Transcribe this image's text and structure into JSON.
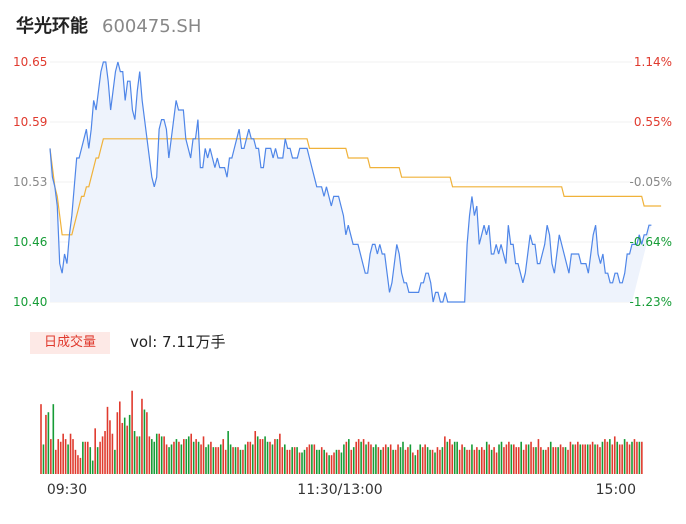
{
  "stock": {
    "name": "华光环能",
    "code": "600475.SH"
  },
  "volume_panel": {
    "tag": "日成交量",
    "label": "vol: 7.11万手"
  },
  "colors": {
    "price": "#4f86e8",
    "avg": "#f0b23a",
    "up": "#e03a2e",
    "down": "#169c36",
    "flat": "#888888",
    "area": "#eef3fc"
  },
  "chart_data": [
    {
      "type": "line",
      "title": "",
      "x_ticks": [
        "09:30",
        "11:30/13:00",
        "15:00"
      ],
      "y_left_ticks": [
        "10.65",
        "10.59",
        "10.53",
        "10.46",
        "10.40"
      ],
      "y_right_ticks": [
        "1.14%",
        "0.55%",
        "-0.05%",
        "-0.64%",
        "-1.23%"
      ],
      "ylim": [
        10.4,
        10.65
      ],
      "prev_close": 10.535,
      "x_count": 241,
      "series": [
        {
          "role": "price",
          "values": [
            10.56,
            10.53,
            10.52,
            10.5,
            10.44,
            10.43,
            10.45,
            10.44,
            10.47,
            10.49,
            10.52,
            10.55,
            10.55,
            10.56,
            10.57,
            10.58,
            10.56,
            10.58,
            10.61,
            10.6,
            10.62,
            10.64,
            10.65,
            10.65,
            10.63,
            10.6,
            10.62,
            10.64,
            10.65,
            10.64,
            10.64,
            10.61,
            10.63,
            10.63,
            10.6,
            10.59,
            10.62,
            10.64,
            10.61,
            10.59,
            10.57,
            10.55,
            10.53,
            10.52,
            10.53,
            10.58,
            10.59,
            10.59,
            10.58,
            10.55,
            10.57,
            10.59,
            10.61,
            10.6,
            10.6,
            10.6,
            10.57,
            10.56,
            10.55,
            10.57,
            10.57,
            10.59,
            10.54,
            10.54,
            10.56,
            10.55,
            10.56,
            10.55,
            10.54,
            10.55,
            10.54,
            10.54,
            10.54,
            10.53,
            10.55,
            10.55,
            10.56,
            10.57,
            10.58,
            10.56,
            10.56,
            10.57,
            10.58,
            10.57,
            10.57,
            10.56,
            10.56,
            10.54,
            10.54,
            10.56,
            10.56,
            10.56,
            10.55,
            10.56,
            10.55,
            10.55,
            10.55,
            10.57,
            10.56,
            10.56,
            10.55,
            10.55,
            10.55,
            10.56,
            10.56,
            10.56,
            10.56,
            10.55,
            10.54,
            10.53,
            10.52,
            10.52,
            10.52,
            10.51,
            10.52,
            10.51,
            10.5,
            10.51,
            10.51,
            10.51,
            10.5,
            10.49,
            10.47,
            10.48,
            10.47,
            10.46,
            10.46,
            10.46,
            10.45,
            10.44,
            10.43,
            10.43,
            10.45,
            10.46,
            10.46,
            10.45,
            10.46,
            10.45,
            10.45,
            10.43,
            10.41,
            10.42,
            10.44,
            10.46,
            10.45,
            10.43,
            10.42,
            10.42,
            10.41,
            10.41,
            10.41,
            10.41,
            10.41,
            10.42,
            10.42,
            10.43,
            10.43,
            10.42,
            10.4,
            10.41,
            10.41,
            10.4,
            10.4,
            10.41,
            10.4,
            10.4,
            10.4,
            10.4,
            10.4,
            10.4,
            10.4,
            10.4,
            10.46,
            10.49,
            10.51,
            10.49,
            10.5,
            10.46,
            10.47,
            10.48,
            10.47,
            10.48,
            10.45,
            10.45,
            10.46,
            10.45,
            10.46,
            10.45,
            10.44,
            10.48,
            10.46,
            10.46,
            10.44,
            10.44,
            10.43,
            10.42,
            10.43,
            10.45,
            10.47,
            10.46,
            10.46,
            10.44,
            10.44,
            10.45,
            10.46,
            10.48,
            10.47,
            10.44,
            10.43,
            10.45,
            10.47,
            10.46,
            10.45,
            10.44,
            10.43,
            10.45,
            10.45,
            10.45,
            10.45,
            10.44,
            10.44,
            10.44,
            10.43,
            10.45,
            10.47,
            10.48,
            10.45,
            10.44,
            10.45,
            10.43,
            10.43,
            10.42,
            10.42,
            10.43,
            10.43,
            10.42,
            10.42,
            10.43,
            10.45,
            10.45,
            10.46,
            10.46,
            10.46,
            10.47,
            10.46,
            10.47,
            10.47,
            10.48,
            10.48
          ]
        },
        {
          "role": "average",
          "values": [
            10.56,
            10.54,
            10.52,
            10.51,
            10.49,
            10.47,
            10.47,
            10.47,
            10.47,
            10.47,
            10.48,
            10.49,
            10.5,
            10.51,
            10.51,
            10.52,
            10.52,
            10.53,
            10.54,
            10.55,
            10.55,
            10.56,
            10.57,
            10.57,
            10.57,
            10.57,
            10.57,
            10.57,
            10.57,
            10.57,
            10.57,
            10.57,
            10.57,
            10.57,
            10.57,
            10.57,
            10.57,
            10.57,
            10.57,
            10.57,
            10.57,
            10.57,
            10.57,
            10.57,
            10.57,
            10.57,
            10.57,
            10.57,
            10.57,
            10.57,
            10.57,
            10.57,
            10.57,
            10.57,
            10.57,
            10.57,
            10.57,
            10.57,
            10.57,
            10.57,
            10.57,
            10.57,
            10.57,
            10.57,
            10.57,
            10.57,
            10.57,
            10.57,
            10.57,
            10.57,
            10.57,
            10.57,
            10.57,
            10.57,
            10.57,
            10.57,
            10.57,
            10.57,
            10.57,
            10.57,
            10.57,
            10.57,
            10.57,
            10.57,
            10.57,
            10.57,
            10.57,
            10.57,
            10.57,
            10.57,
            10.57,
            10.57,
            10.57,
            10.57,
            10.57,
            10.57,
            10.57,
            10.57,
            10.57,
            10.57,
            10.57,
            10.57,
            10.57,
            10.57,
            10.57,
            10.57,
            10.57,
            10.56,
            10.56,
            10.56,
            10.56,
            10.56,
            10.56,
            10.56,
            10.56,
            10.56,
            10.56,
            10.56,
            10.56,
            10.56,
            10.56,
            10.56,
            10.56,
            10.55,
            10.55,
            10.55,
            10.55,
            10.55,
            10.55,
            10.55,
            10.55,
            10.55,
            10.54,
            10.54,
            10.54,
            10.54,
            10.54,
            10.54,
            10.54,
            10.54,
            10.54,
            10.54,
            10.54,
            10.54,
            10.54,
            10.53,
            10.53,
            10.53,
            10.53,
            10.53,
            10.53,
            10.53,
            10.53,
            10.53,
            10.53,
            10.53,
            10.53,
            10.53,
            10.53,
            10.53,
            10.53,
            10.53,
            10.53,
            10.53,
            10.53,
            10.53,
            10.52,
            10.52,
            10.52,
            10.52,
            10.52,
            10.52,
            10.52,
            10.52,
            10.52,
            10.52,
            10.52,
            10.52,
            10.52,
            10.52,
            10.52,
            10.52,
            10.52,
            10.52,
            10.52,
            10.52,
            10.52,
            10.52,
            10.52,
            10.52,
            10.52,
            10.52,
            10.52,
            10.52,
            10.52,
            10.52,
            10.52,
            10.52,
            10.52,
            10.52,
            10.52,
            10.52,
            10.52,
            10.52,
            10.52,
            10.52,
            10.52,
            10.52,
            10.52,
            10.52,
            10.52,
            10.52,
            10.51,
            10.51,
            10.51,
            10.51,
            10.51,
            10.51,
            10.51,
            10.51,
            10.51,
            10.51,
            10.51,
            10.51,
            10.51,
            10.51,
            10.51,
            10.51,
            10.51,
            10.51,
            10.51,
            10.51,
            10.51,
            10.51,
            10.51,
            10.51,
            10.51,
            10.51,
            10.51,
            10.51,
            10.51,
            10.51,
            10.51,
            10.51,
            10.51,
            10.5,
            10.5,
            10.5,
            10.5,
            10.5,
            10.5,
            10.5,
            10.5
          ]
        }
      ]
    },
    {
      "type": "bar",
      "title": "",
      "x_count": 241,
      "volume": [
        26,
        11,
        22,
        23,
        13,
        26,
        9,
        13,
        12,
        15,
        13,
        11,
        15,
        13,
        9,
        7,
        6,
        12,
        12,
        12,
        10,
        5,
        17,
        10,
        12,
        14,
        16,
        25,
        20,
        15,
        9,
        23,
        27,
        19,
        21,
        18,
        22,
        31,
        16,
        14,
        14,
        28,
        24,
        23,
        14,
        13,
        12,
        15,
        15,
        14,
        14,
        11,
        10,
        11,
        12,
        13,
        12,
        11,
        13,
        13,
        14,
        15,
        12,
        13,
        12,
        11,
        14,
        10,
        11,
        12,
        10,
        10,
        10,
        11,
        13,
        9,
        16,
        11,
        10,
        10,
        10,
        9,
        9,
        11,
        12,
        12,
        11,
        16,
        14,
        13,
        13,
        14,
        12,
        12,
        11,
        13,
        13,
        15,
        10,
        11,
        9,
        9,
        10,
        10,
        10,
        8,
        8,
        9,
        10,
        11,
        11,
        11,
        9,
        9,
        10,
        9,
        8,
        7,
        7,
        8,
        9,
        9,
        8,
        11,
        12,
        13,
        9,
        10,
        12,
        13,
        12,
        13,
        11,
        12,
        11,
        10,
        11,
        10,
        9,
        10,
        11,
        10,
        11,
        9,
        9,
        11,
        10,
        12,
        9,
        10,
        11,
        8,
        7,
        9,
        11,
        10,
        11,
        10,
        9,
        9,
        8,
        10,
        9,
        10,
        14,
        12,
        13,
        11,
        12,
        12,
        9,
        11,
        10,
        9,
        9,
        11,
        9,
        10,
        9,
        10,
        9,
        12,
        11,
        9,
        10,
        8,
        11,
        12,
        10,
        11,
        12,
        11,
        11,
        10,
        10,
        12,
        9,
        11,
        11,
        12,
        10,
        10,
        13,
        10,
        9,
        9,
        10,
        12,
        10,
        10,
        10,
        11,
        10,
        10,
        9,
        12,
        11,
        11,
        12,
        11,
        11,
        11,
        11,
        11,
        12,
        11,
        11,
        10,
        12,
        13,
        12,
        13,
        11,
        14,
        12,
        11,
        11,
        13,
        12,
        11,
        12,
        13,
        12,
        12,
        12
      ],
      "direction": [
        "u",
        "d",
        "u",
        "d",
        "u",
        "d",
        "u",
        "u",
        "u",
        "u",
        "u",
        "d",
        "u",
        "u",
        "u",
        "u",
        "u",
        "d",
        "u",
        "u",
        "d",
        "d",
        "u",
        "d",
        "u",
        "u",
        "u",
        "u",
        "u",
        "u",
        "d",
        "u",
        "u",
        "u",
        "d",
        "u",
        "d",
        "u",
        "d",
        "u",
        "d",
        "u",
        "d",
        "u",
        "u",
        "d",
        "d",
        "d",
        "u",
        "d",
        "u",
        "u",
        "d",
        "d",
        "u",
        "d",
        "u",
        "d",
        "u",
        "d",
        "d",
        "u",
        "d",
        "u",
        "d",
        "u",
        "u",
        "d",
        "d",
        "u",
        "d",
        "u",
        "u",
        "d",
        "u",
        "u",
        "d",
        "d",
        "u",
        "d",
        "u",
        "d",
        "u",
        "d",
        "u",
        "u",
        "d",
        "u",
        "d",
        "u",
        "u",
        "d",
        "d",
        "u",
        "d",
        "u",
        "d",
        "u",
        "u",
        "d",
        "u",
        "u",
        "d",
        "u",
        "d",
        "u",
        "d",
        "d",
        "u",
        "u",
        "d",
        "u",
        "d",
        "d",
        "u",
        "d",
        "u",
        "d",
        "u",
        "u",
        "d",
        "u",
        "d",
        "d",
        "u",
        "d",
        "u",
        "d",
        "u",
        "u",
        "d",
        "u",
        "d",
        "u",
        "u",
        "d",
        "d",
        "u",
        "d",
        "u",
        "u",
        "d",
        "u",
        "d",
        "u",
        "u",
        "d",
        "d",
        "u",
        "u",
        "d",
        "u",
        "d",
        "u",
        "d",
        "u",
        "u",
        "d",
        "d",
        "u",
        "d",
        "u",
        "u",
        "d",
        "u",
        "d",
        "u",
        "u",
        "d",
        "d",
        "u",
        "u",
        "d",
        "u",
        "u",
        "d",
        "u",
        "u",
        "d",
        "u",
        "u",
        "d",
        "u",
        "d",
        "u",
        "u",
        "d",
        "d",
        "u",
        "u",
        "u",
        "d",
        "u",
        "u",
        "u",
        "d",
        "u",
        "u",
        "d",
        "u",
        "u",
        "d",
        "u",
        "u",
        "d",
        "u",
        "u",
        "d",
        "u",
        "u",
        "d",
        "u",
        "u",
        "d",
        "u",
        "u",
        "d",
        "u",
        "u",
        "d",
        "u",
        "u",
        "d",
        "u",
        "u",
        "d",
        "u",
        "u",
        "d",
        "u",
        "u",
        "d",
        "u",
        "u",
        "d",
        "u",
        "u",
        "d",
        "u",
        "u",
        "d",
        "u",
        "u",
        "d",
        "u",
        "u"
      ],
      "ylim": [
        0,
        35
      ]
    }
  ]
}
